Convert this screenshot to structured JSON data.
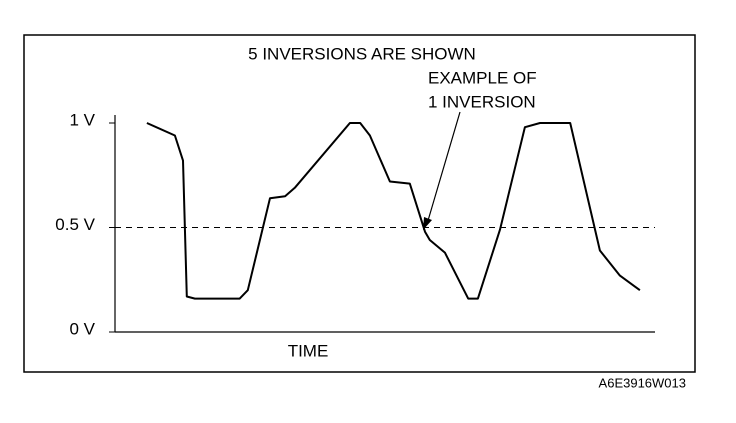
{
  "chart_data": {
    "type": "line",
    "title": "5 INVERSIONS ARE SHOWN",
    "annotation": "EXAMPLE OF\n1 INVERSION",
    "annotation_lines": [
      "EXAMPLE OF",
      "1 INVERSION"
    ],
    "x_label": "TIME",
    "code": "A6E3916W013",
    "x": [
      5.9,
      11.1,
      12.6,
      13.3,
      14.8,
      23.1,
      24.6,
      28.7,
      31.5,
      33.3,
      43.5,
      45.4,
      47.2,
      50.9,
      54.6,
      57.4,
      58.3,
      61.1,
      65.4,
      67.2,
      71.3,
      75.9,
      78.7,
      84.3,
      89.8,
      93.5,
      97.2
    ],
    "values": [
      1.0,
      0.94,
      0.82,
      0.17,
      0.16,
      0.16,
      0.2,
      0.64,
      0.65,
      0.69,
      1.0,
      1.0,
      0.94,
      0.72,
      0.71,
      0.48,
      0.44,
      0.38,
      0.16,
      0.16,
      0.49,
      0.98,
      1.0,
      1.0,
      0.39,
      0.27,
      0.2
    ],
    "color": "#000000",
    "xlim": [
      0,
      100
    ],
    "ylim": [
      0,
      1
    ],
    "yticks": [
      {
        "value": 0,
        "label": "0 V"
      },
      {
        "value": 0.5,
        "label": "0.5 V"
      },
      {
        "value": 1,
        "label": "1 V"
      }
    ]
  }
}
